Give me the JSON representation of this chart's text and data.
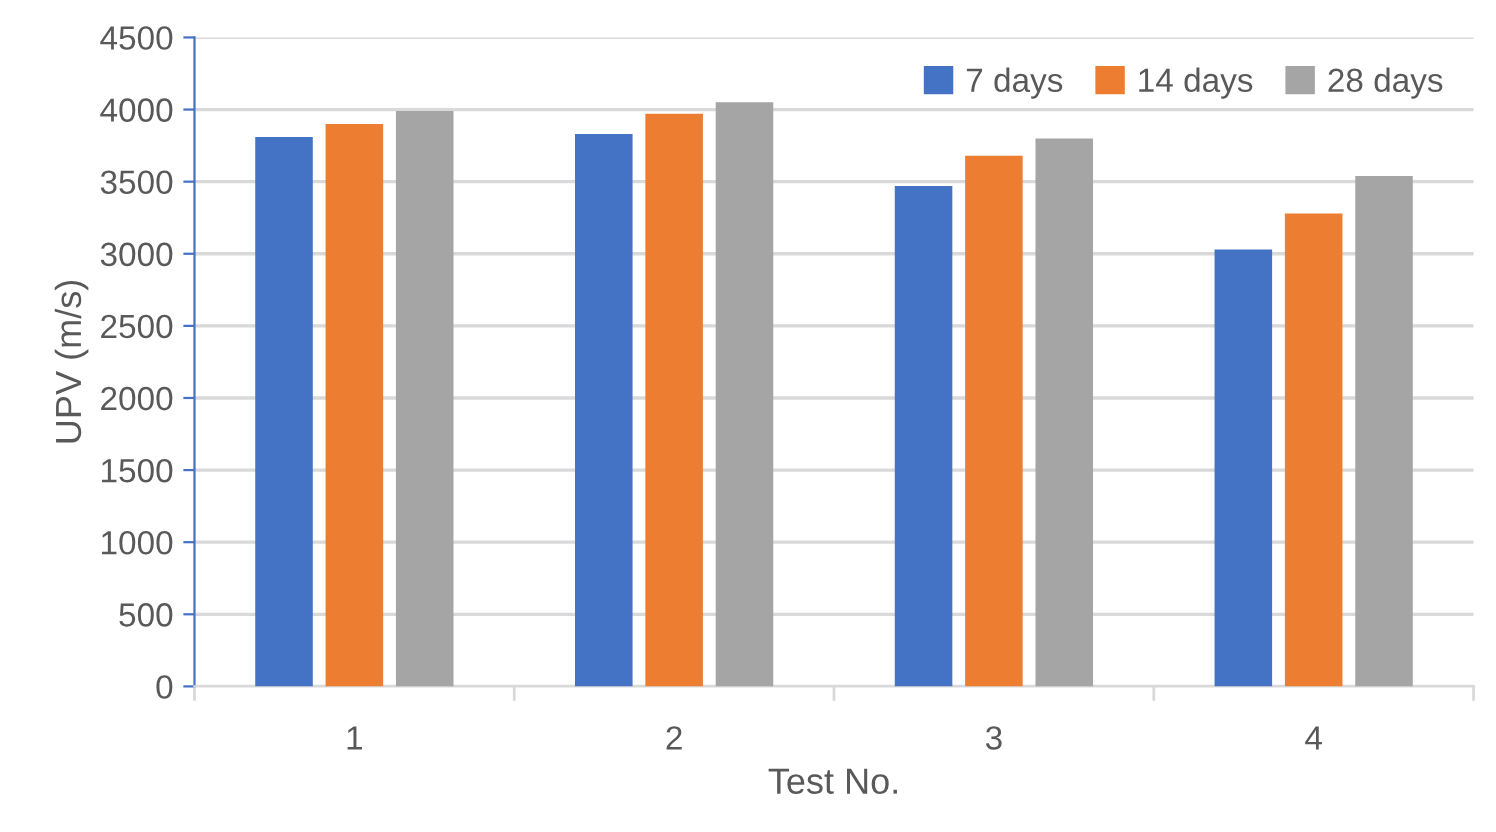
{
  "chart_data": {
    "type": "bar",
    "xlabel": "Test No.",
    "ylabel": "UPV (m/s)",
    "categories": [
      "1",
      "2",
      "3",
      "4"
    ],
    "series": [
      {
        "name": "7 days",
        "color": "#4472c4",
        "values": [
          3810,
          3830,
          3470,
          3030
        ]
      },
      {
        "name": "14 days",
        "color": "#ed7d31",
        "values": [
          3900,
          3970,
          3680,
          3280
        ]
      },
      {
        "name": "28 days",
        "color": "#a5a5a5",
        "values": [
          3990,
          4050,
          3800,
          3540
        ]
      }
    ],
    "ylim": [
      0,
      4500
    ],
    "yticks": [
      0,
      500,
      1000,
      1500,
      2000,
      2500,
      3000,
      3500,
      4000,
      4500
    ],
    "grid": "y",
    "legend": "top right"
  }
}
